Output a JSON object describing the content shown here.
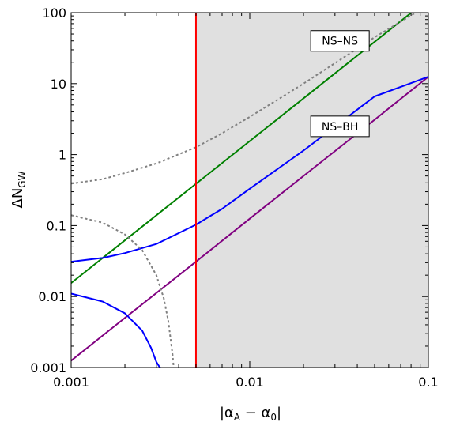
{
  "chart_data": {
    "type": "line",
    "xlabel": "|αA − α0|",
    "ylabel": "ΔNGW",
    "xlabel_parts": {
      "open": "|α",
      "sub1": "A",
      "mid": " − α",
      "sub2": "0",
      "close": "|"
    },
    "ylabel_parts": {
      "main": "ΔN",
      "sub": "GW"
    },
    "xscale": "log",
    "yscale": "log",
    "xlim": [
      0.001,
      0.1
    ],
    "ylim": [
      0.001,
      100
    ],
    "grid": false,
    "x_ticks": [
      {
        "value": 0.001,
        "label": "0.001"
      },
      {
        "value": 0.01,
        "label": "0.01"
      },
      {
        "value": 0.1,
        "label": "0.1"
      }
    ],
    "y_ticks": [
      {
        "value": 0.001,
        "label": "0.001"
      },
      {
        "value": 0.01,
        "label": "0.01"
      },
      {
        "value": 0.1,
        "label": "0.1"
      },
      {
        "value": 1,
        "label": "1"
      },
      {
        "value": 10,
        "label": "10"
      },
      {
        "value": 100,
        "label": "100"
      }
    ],
    "vertical_line": {
      "x": 0.005,
      "color": "#ff0000"
    },
    "shaded_region": {
      "x_from": 0.005,
      "x_to": 0.1,
      "color": "#e0e0e0"
    },
    "series": [
      {
        "color": "#008000",
        "style": "solid",
        "x": [
          0.001,
          0.002,
          0.005,
          0.01,
          0.02,
          0.05,
          0.08
        ],
        "y": [
          0.0155,
          0.062,
          0.388,
          1.55,
          6.2,
          38.8,
          99.2
        ]
      },
      {
        "color": "#800080",
        "style": "solid",
        "x": [
          0.001,
          0.002,
          0.005,
          0.01,
          0.02,
          0.05,
          0.1
        ],
        "y": [
          0.00125,
          0.005,
          0.031,
          0.125,
          0.5,
          3.1,
          12.5
        ]
      },
      {
        "color": "#0000ff",
        "style": "solid",
        "x": [
          0.001,
          0.0015,
          0.002,
          0.003,
          0.005,
          0.007,
          0.01,
          0.02,
          0.05,
          0.1
        ],
        "y": [
          0.031,
          0.035,
          0.041,
          0.055,
          0.103,
          0.172,
          0.33,
          1.14,
          6.6,
          12.5
        ]
      },
      {
        "color": "#0000ff",
        "style": "solid",
        "x": [
          0.001,
          0.0015,
          0.002,
          0.0025,
          0.0028,
          0.003,
          0.0031,
          0.00315
        ],
        "y": [
          0.011,
          0.0085,
          0.0058,
          0.0033,
          0.0019,
          0.0012,
          0.00105,
          0.001
        ]
      },
      {
        "color": "#808080",
        "style": "dotted",
        "x": [
          0.001,
          0.0015,
          0.002,
          0.003,
          0.005,
          0.007,
          0.01,
          0.02,
          0.05,
          0.085
        ],
        "y": [
          0.39,
          0.45,
          0.55,
          0.75,
          1.27,
          2.0,
          3.4,
          10.0,
          45,
          100
        ]
      },
      {
        "color": "#808080",
        "style": "dotted",
        "x": [
          0.001,
          0.0015,
          0.002,
          0.0025,
          0.003,
          0.0033,
          0.0035,
          0.0037,
          0.00375
        ],
        "y": [
          0.14,
          0.11,
          0.075,
          0.045,
          0.02,
          0.0095,
          0.0045,
          0.0015,
          0.001
        ]
      }
    ],
    "annotations": [
      {
        "text": "NS–NS",
        "x": 0.032,
        "y": 40
      },
      {
        "text": "NS–BH",
        "x": 0.032,
        "y": 2.5
      }
    ]
  }
}
